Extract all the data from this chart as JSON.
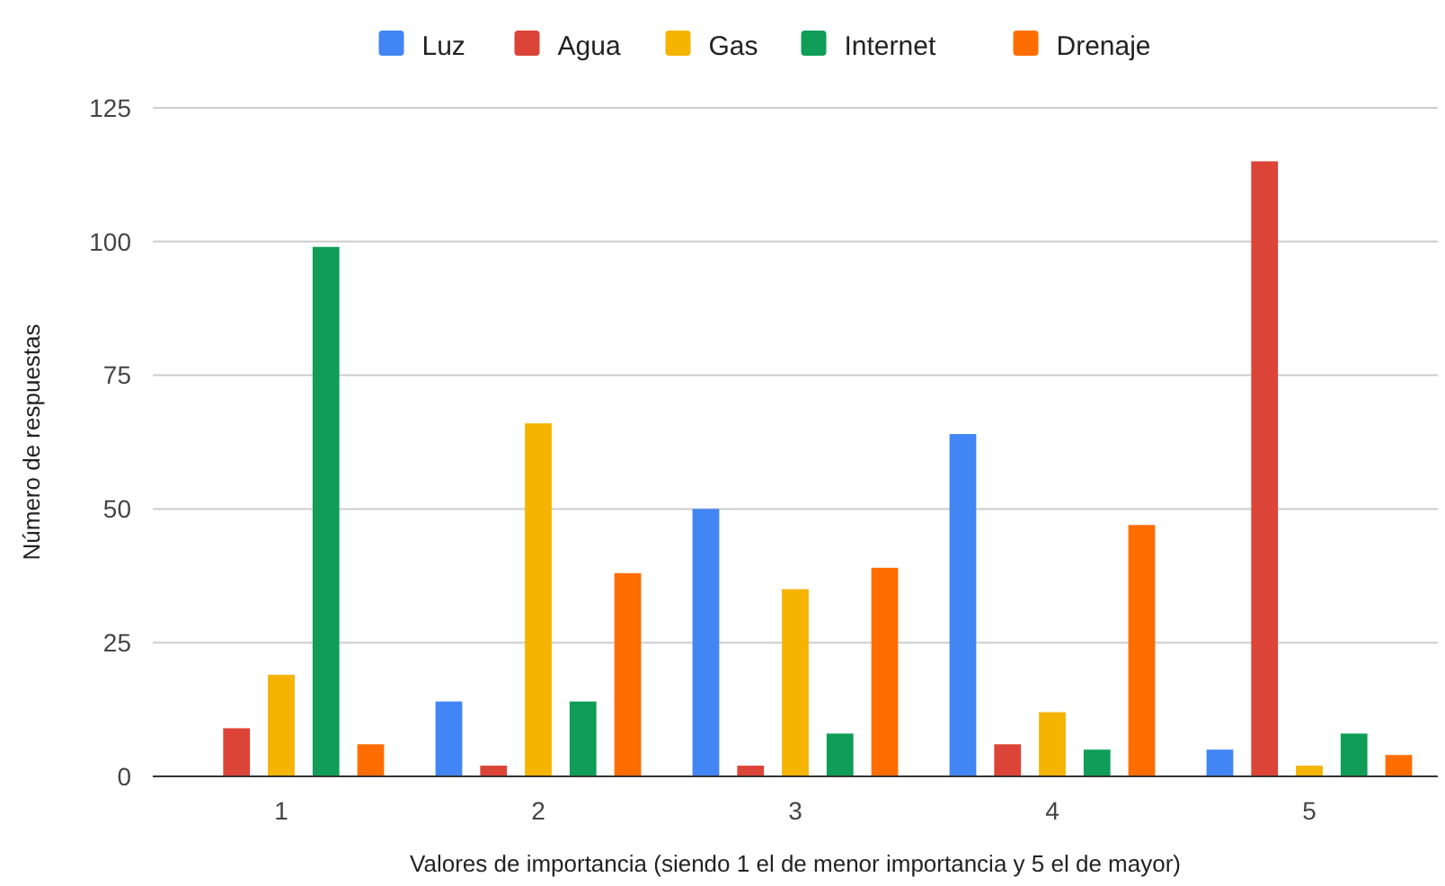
{
  "chart_data": {
    "type": "bar",
    "xlabel": "Valores de importancia (siendo 1 el de menor importancia y 5 el de mayor)",
    "ylabel": "Número de respuestas",
    "categories": [
      "1",
      "2",
      "3",
      "4",
      "5"
    ],
    "series": [
      {
        "name": "Luz",
        "color": "#4285f4",
        "values": [
          0,
          14,
          50,
          64,
          5
        ]
      },
      {
        "name": "Agua",
        "color": "#db4437",
        "values": [
          9,
          2,
          2,
          6,
          115
        ]
      },
      {
        "name": "Gas",
        "color": "#f4b400",
        "values": [
          19,
          66,
          35,
          12,
          2
        ]
      },
      {
        "name": "Internet",
        "color": "#0f9d58",
        "values": [
          99,
          14,
          8,
          5,
          8
        ]
      },
      {
        "name": "Drenaje",
        "color": "#ff6d01",
        "values": [
          6,
          38,
          39,
          47,
          4
        ]
      }
    ],
    "ylim": [
      0,
      125
    ],
    "yticks": [
      0,
      25,
      50,
      75,
      100,
      125
    ],
    "grid": "y",
    "legend": "top"
  }
}
